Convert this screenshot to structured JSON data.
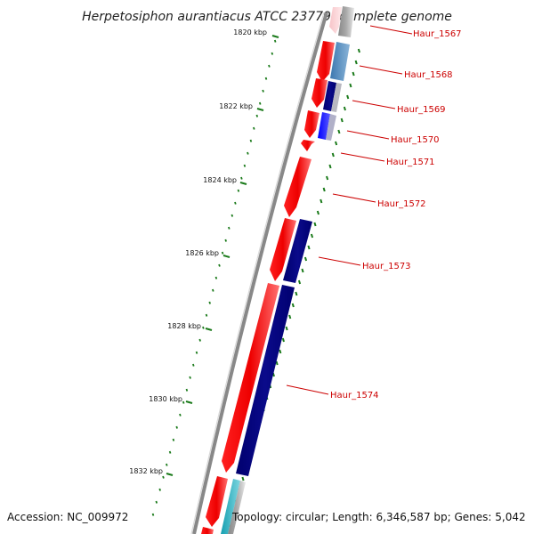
{
  "title": "Herpetosiphon aurantiacus ATCC 23779, complete genome",
  "accession": "Accession: NC_009972",
  "topology": "Topology: circular; Length: 6,346,587 bp; Genes: 5,042",
  "tick_labels": [
    "1820 kbp",
    "1822 kbp",
    "1824 kbp",
    "1826 kbp",
    "1828 kbp",
    "1830 kbp",
    "1832 kbp"
  ],
  "gene_labels": [
    "Haur_1567",
    "Haur_1568",
    "Haur_1569",
    "Haur_1570",
    "Haur_1571",
    "Haur_1572",
    "Haur_1573",
    "Haur_1574"
  ],
  "colors": {
    "backbone": "#808080",
    "forward_strand": "#ff0000",
    "reverse_strand": "#000080",
    "reverse_strand_alt": "#4682b4",
    "reverse_strand_blue": "#0000ff",
    "cyan_feature": "#20b2c0",
    "grey_feature": "#c8c8c8",
    "gc_skew_dots": "#1a7a1a",
    "label_text": "#cc0000"
  },
  "icons": [
    "forward-arrow-icon",
    "reverse-bar-icon"
  ]
}
